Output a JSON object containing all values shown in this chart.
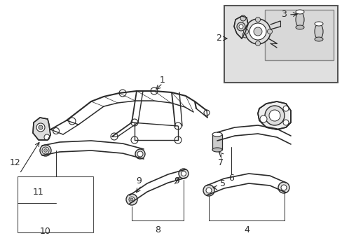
{
  "bg_color": "#ffffff",
  "line_color": "#2a2a2a",
  "gray_fill": "#cccccc",
  "inset_bg": "#e0e0e0",
  "fig_width": 4.89,
  "fig_height": 3.6,
  "dpi": 100
}
